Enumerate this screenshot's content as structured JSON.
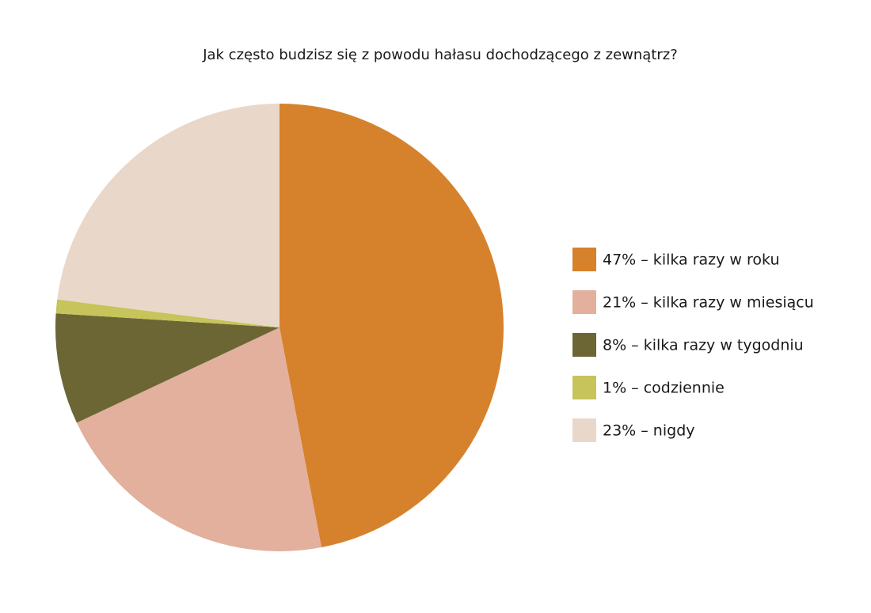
{
  "chart_data": {
    "type": "pie",
    "title": "Jak często budzisz się z powodu hałasu dochodzącego z zewnątrz?",
    "categories": [
      "47% – kilka razy w roku",
      "21% – kilka razy w miesiącu",
      "8% – kilka razy w tygodniu",
      "1% – codziennie",
      "23% – nigdy"
    ],
    "values": [
      47,
      21,
      8,
      1,
      23
    ],
    "colors": [
      "#d6812b",
      "#e2b09c",
      "#6b6634",
      "#c6c45a",
      "#e9d8ca"
    ],
    "legend": "right"
  }
}
